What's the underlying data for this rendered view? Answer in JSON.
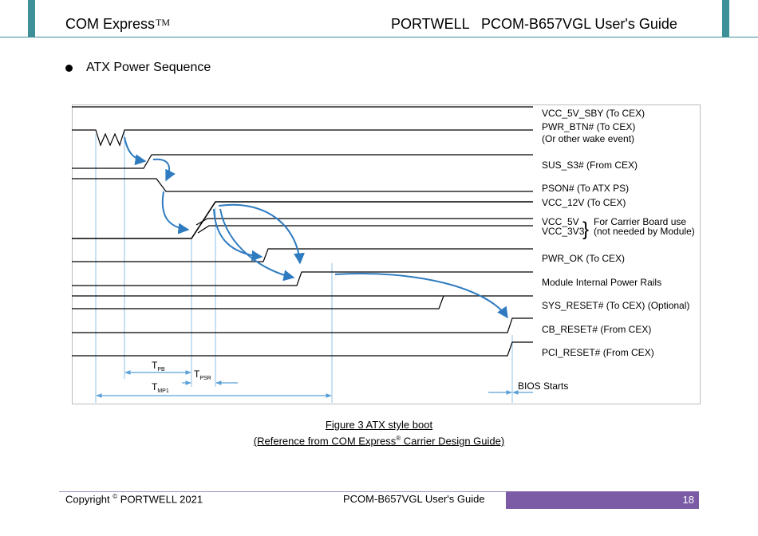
{
  "header": {
    "left_title": "COM Express",
    "trademark": "TM",
    "right_title": "PORTWELL   PCOM-B657VGL User's Guide"
  },
  "section": {
    "bullet_title": "ATX Power Sequence"
  },
  "diagram": {
    "signals": [
      "VCC_5V_SBY (To CEX)",
      "PWR_BTN# (To CEX)",
      "(Or other wake event)",
      "SUS_S3# (From CEX)",
      "PSON# (To ATX PS)",
      "VCC_12V (To CEX)",
      "VCC_5V",
      "VCC_3V3",
      "PWR_OK (To CEX)",
      "Module Internal Power Rails",
      "SYS_RESET# (To CEX) (Optional)",
      "CB_RESET# (From CEX)",
      "PCI_RESET# (From CEX)"
    ],
    "brace_note_1": "For Carrier Board use",
    "brace_note_2": "(not needed by Module)",
    "timing": {
      "t_pb": "T",
      "t_pb_sub": "PB",
      "t_psr": "T",
      "t_psr_sub": "PSR",
      "t_mp1": "T",
      "t_mp1_sub": "MP1"
    },
    "bios_label": "BIOS Starts"
  },
  "caption": {
    "line1": "Figure 3 ATX style boot",
    "line2_prefix": "(Reference from COM Express",
    "line2_reg": "®",
    "line2_suffix": " Carrier Design Guide)"
  },
  "footer": {
    "copyright_prefix": "Copyright ",
    "copyright_symbol": "©",
    "copyright_suffix": " PORTWELL 2021",
    "guide_name": "PCOM-B657VGL User's Guide",
    "page_number": "18"
  },
  "colors": {
    "accent_teal": "#3d8f98",
    "footer_purple": "#7b5aa6",
    "arrow_blue": "#2e7bc0"
  }
}
